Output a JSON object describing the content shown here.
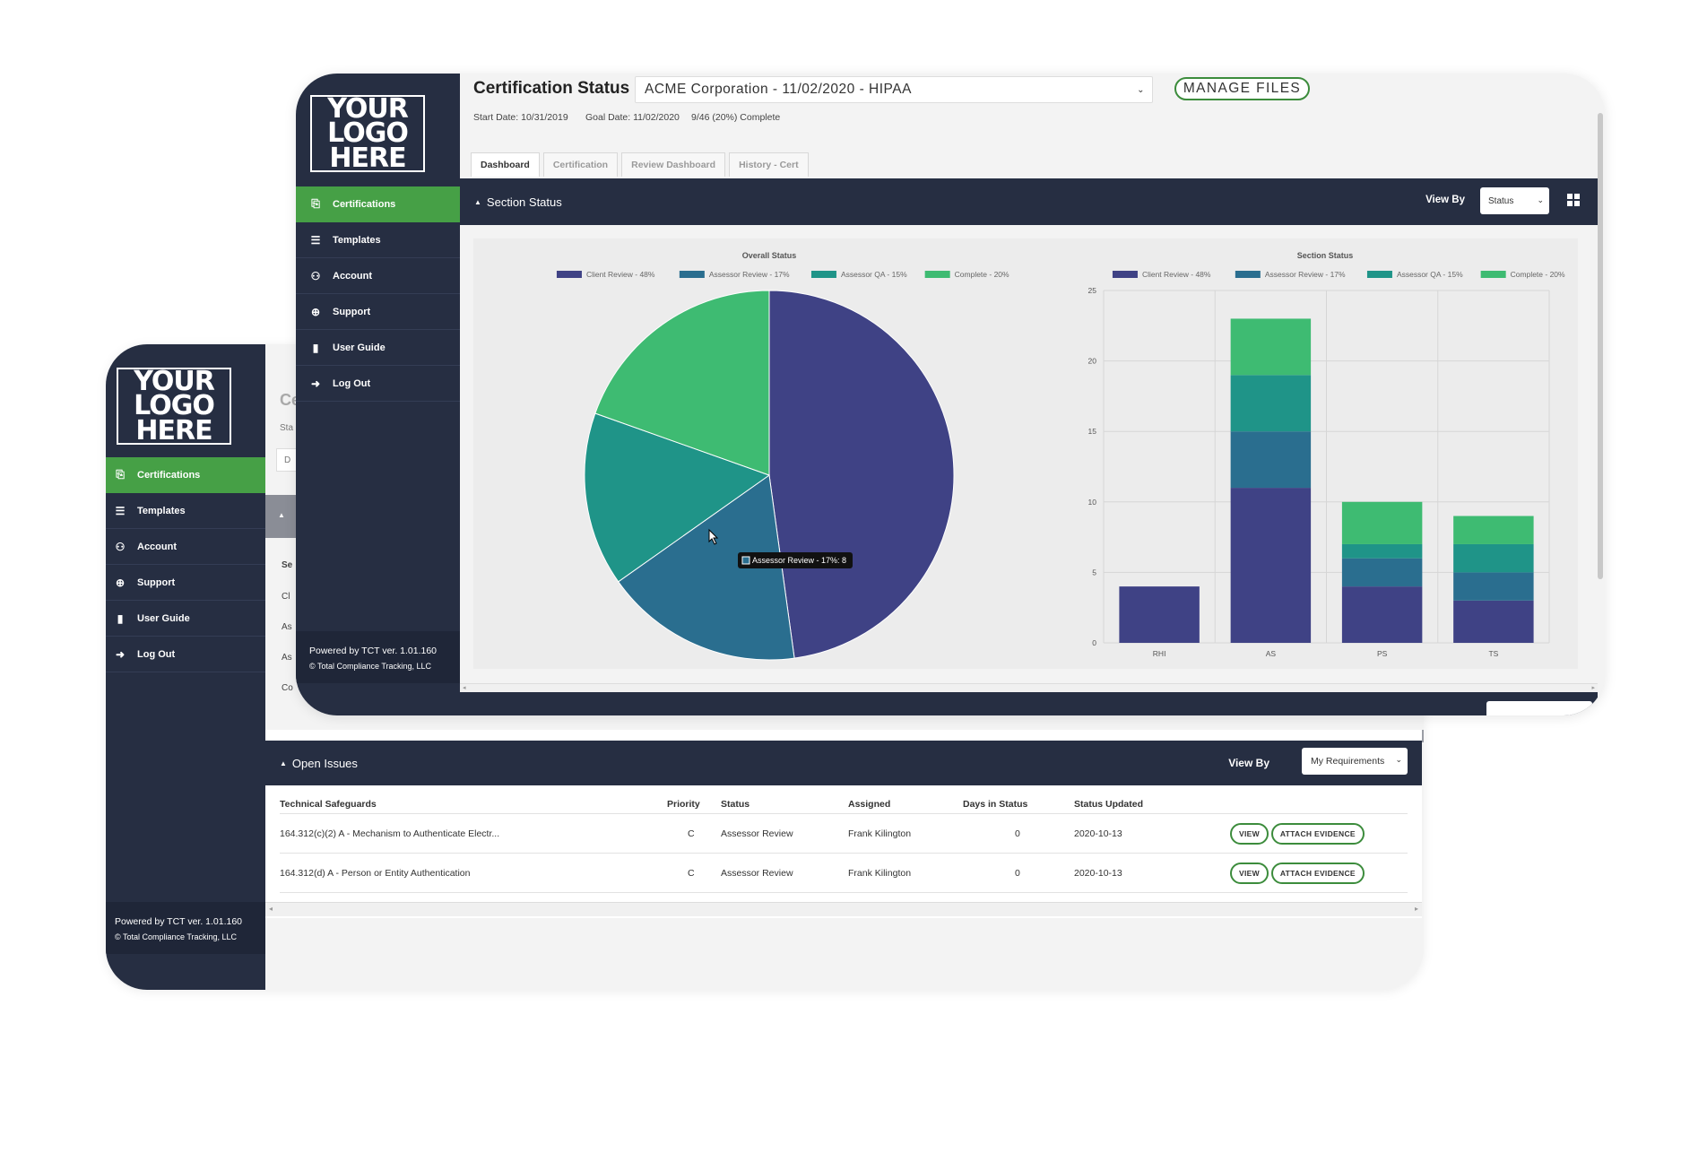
{
  "logo": {
    "line1": "YOUR",
    "line2": "LOGO",
    "line3": "HERE"
  },
  "sidebar": {
    "items": [
      {
        "label": "Certifications",
        "icon": "certificate-icon",
        "active": true
      },
      {
        "label": "Templates",
        "icon": "list-icon"
      },
      {
        "label": "Account",
        "icon": "user-icon"
      },
      {
        "label": "Support",
        "icon": "lifebuoy-icon"
      },
      {
        "label": "User Guide",
        "icon": "book-icon"
      },
      {
        "label": "Log Out",
        "icon": "sign-out-icon"
      }
    ],
    "footer_powered": "Powered by TCT ver. 1.01.160",
    "footer_copyright": "© Total Compliance Tracking, LLC"
  },
  "header": {
    "title": "Certification Status",
    "selected_certification": "ACME Corporation - 11/02/2020 - HIPAA",
    "manage_files": "MANAGE FILES",
    "start_date": "Start Date: 10/31/2019",
    "goal_date": "Goal Date: 11/02/2020",
    "progress": "9/46 (20%) Complete"
  },
  "tabs": [
    "Dashboard",
    "Certification",
    "Review Dashboard",
    "History - Cert"
  ],
  "section_status": {
    "title": "Section Status",
    "view_by_label": "View By",
    "view_by_value": "Status"
  },
  "open_issues": {
    "title": "Open Issues",
    "view_by_label": "View By",
    "view_by_value": "My Requirements",
    "columns": [
      "Technical Safeguards",
      "Priority",
      "Status",
      "Assigned",
      "Days in Status",
      "Status Updated"
    ],
    "rows": [
      {
        "requirement": "164.312(c)(2) A - Mechanism to Authenticate Electr...",
        "priority": "C",
        "status": "Assessor Review",
        "assigned": "Frank Kilington",
        "days": "0",
        "updated": "2020-10-13"
      },
      {
        "requirement": "164.312(d) A - Person or Entity Authentication",
        "priority": "C",
        "status": "Assessor Review",
        "assigned": "Frank Kilington",
        "days": "0",
        "updated": "2020-10-13"
      }
    ],
    "view_label": "VIEW",
    "attach_label": "ATTACH EVIDENCE"
  },
  "back_peek": {
    "title_frag": "Ce",
    "meta_frag": "Sta",
    "tab_frag": "D",
    "rows": [
      "Se",
      "Cl",
      "As",
      "As",
      "Co"
    ]
  },
  "colors": {
    "sidebar_bg": "#262e42",
    "accent_green": "#46a046",
    "client_review": "#3f4285",
    "assessor_review": "#2a6e8f",
    "assessor_qa": "#1f9488",
    "complete": "#3ebb72"
  },
  "chart_data": [
    {
      "type": "pie",
      "title": "Overall Status",
      "legend": [
        "Client Review - 48%",
        "Assessor Review - 17%",
        "Assessor QA - 15%",
        "Complete - 20%"
      ],
      "legend_position": "top",
      "values": [
        22,
        8,
        7,
        9
      ],
      "tooltip": "Assessor Review - 17%: 8"
    },
    {
      "type": "bar",
      "stacked": true,
      "title": "Section Status",
      "legend": [
        "Client Review - 48%",
        "Assessor Review - 17%",
        "Assessor QA - 15%",
        "Complete - 20%"
      ],
      "legend_position": "top",
      "categories": [
        "RHI",
        "AS",
        "PS",
        "TS"
      ],
      "series": [
        {
          "name": "Client Review - 48%",
          "values": [
            4,
            11,
            4,
            3
          ]
        },
        {
          "name": "Assessor Review - 17%",
          "values": [
            0,
            4,
            2,
            2
          ]
        },
        {
          "name": "Assessor QA - 15%",
          "values": [
            0,
            4,
            1,
            2
          ]
        },
        {
          "name": "Complete - 20%",
          "values": [
            0,
            4,
            3,
            2
          ]
        }
      ],
      "ylim": [
        0,
        25
      ],
      "yticks": [
        0,
        5,
        10,
        15,
        20,
        25
      ],
      "grid": true
    }
  ]
}
